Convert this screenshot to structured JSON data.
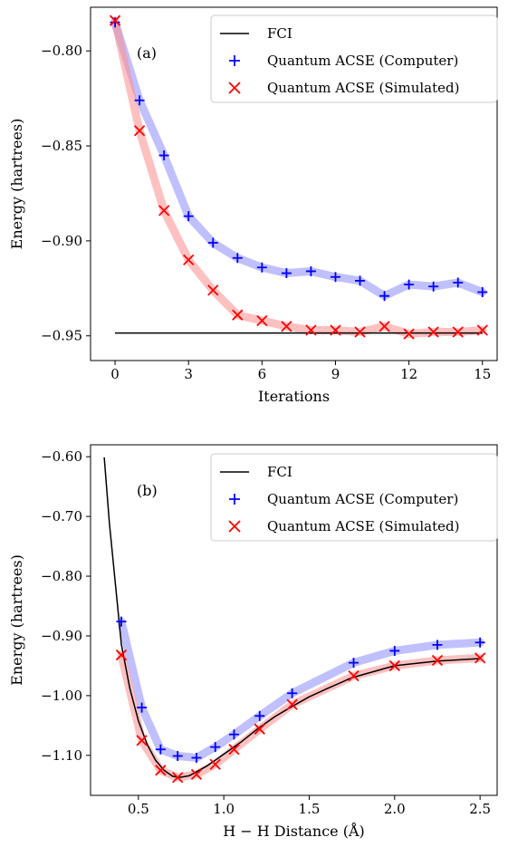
{
  "chart_data": [
    {
      "type": "line",
      "panel_label": "(a)",
      "xlabel": "Iterations",
      "ylabel": "Energy (hartrees)",
      "xlim": [
        -1.0,
        15.6
      ],
      "ylim": [
        -0.963,
        -0.777
      ],
      "xticks": [
        0,
        3,
        6,
        9,
        12,
        15
      ],
      "xtick_labels": [
        "0",
        "3",
        "6",
        "9",
        "12",
        "15"
      ],
      "yticks": [
        -0.8,
        -0.85,
        -0.9,
        -0.95
      ],
      "ytick_labels": [
        "−0.80",
        "−0.85",
        "−0.90",
        "−0.95"
      ],
      "grid": false,
      "legend_position": "top-right",
      "series": [
        {
          "name": "FCI",
          "kind": "line",
          "color": "#000000",
          "x": [
            0,
            15
          ],
          "y": [
            -0.9485,
            -0.9485
          ]
        },
        {
          "name": "Quantum ACSE (Computer)",
          "kind": "marker-plus",
          "color": "#0000ff",
          "band_color": "#8c8cff",
          "x": [
            0,
            1,
            2,
            3,
            4,
            5,
            6,
            7,
            8,
            9,
            10,
            11,
            12,
            13,
            14,
            15
          ],
          "y": [
            -0.785,
            -0.826,
            -0.855,
            -0.887,
            -0.901,
            -0.909,
            -0.914,
            -0.917,
            -0.916,
            -0.919,
            -0.921,
            -0.929,
            -0.923,
            -0.924,
            -0.922,
            -0.927
          ]
        },
        {
          "name": "Quantum ACSE (Simulated)",
          "kind": "marker-x",
          "color": "#ff0000",
          "band_color": "#ff8c8c",
          "x": [
            0,
            1,
            2,
            3,
            4,
            5,
            6,
            7,
            8,
            9,
            10,
            11,
            12,
            13,
            14,
            15
          ],
          "y": [
            -0.784,
            -0.842,
            -0.884,
            -0.91,
            -0.926,
            -0.939,
            -0.942,
            -0.945,
            -0.947,
            -0.947,
            -0.948,
            -0.945,
            -0.949,
            -0.948,
            -0.948,
            -0.947
          ]
        }
      ]
    },
    {
      "type": "line",
      "panel_label": "(b)",
      "xlabel": "H − H Distance (Å)",
      "ylabel": "Energy (hartrees)",
      "xlim": [
        0.22,
        2.6
      ],
      "ylim": [
        -1.167,
        -0.58
      ],
      "xticks": [
        0.5,
        1.0,
        1.5,
        2.0,
        2.5
      ],
      "xtick_labels": [
        "0.5",
        "1.0",
        "1.5",
        "2.0",
        "2.5"
      ],
      "yticks": [
        -0.6,
        -0.7,
        -0.8,
        -0.9,
        -1.0,
        -1.1
      ],
      "ytick_labels": [
        "−0.60",
        "−0.70",
        "−0.80",
        "−0.90",
        "−1.00",
        "−1.10"
      ],
      "grid": false,
      "legend_position": "top-right",
      "series": [
        {
          "name": "FCI",
          "kind": "line",
          "color": "#000000",
          "x": [
            0.3,
            0.33,
            0.36,
            0.4,
            0.45,
            0.5,
            0.55,
            0.6,
            0.65,
            0.7,
            0.74,
            0.8,
            0.9,
            1.0,
            1.1,
            1.2,
            1.3,
            1.4,
            1.5,
            1.6,
            1.75,
            2.0,
            2.25,
            2.5
          ],
          "y": [
            -0.601,
            -0.711,
            -0.797,
            -0.914,
            -0.988,
            -1.042,
            -1.081,
            -1.108,
            -1.125,
            -1.135,
            -1.137,
            -1.134,
            -1.118,
            -1.098,
            -1.078,
            -1.055,
            -1.035,
            -1.018,
            -1.002,
            -0.989,
            -0.97,
            -0.95,
            -0.942,
            -0.938
          ]
        },
        {
          "name": "Quantum ACSE (Computer)",
          "kind": "marker-plus",
          "color": "#0000ff",
          "band_color": "#8c8cff",
          "x": [
            0.4,
            0.52,
            0.63,
            0.73,
            0.84,
            0.95,
            1.06,
            1.21,
            1.4,
            1.76,
            2.0,
            2.25,
            2.5
          ],
          "y": [
            -0.876,
            -1.02,
            -1.09,
            -1.101,
            -1.104,
            -1.086,
            -1.065,
            -1.034,
            -0.996,
            -0.945,
            -0.925,
            -0.915,
            -0.911
          ]
        },
        {
          "name": "Quantum ACSE (Simulated)",
          "kind": "marker-x",
          "color": "#ff0000",
          "band_color": "#ff8c8c",
          "x": [
            0.4,
            0.52,
            0.63,
            0.73,
            0.84,
            0.95,
            1.06,
            1.21,
            1.4,
            1.76,
            2.0,
            2.25,
            2.5
          ],
          "y": [
            -0.932,
            -1.075,
            -1.125,
            -1.137,
            -1.132,
            -1.115,
            -1.09,
            -1.056,
            -1.015,
            -0.967,
            -0.95,
            -0.941,
            -0.937
          ]
        }
      ]
    }
  ]
}
